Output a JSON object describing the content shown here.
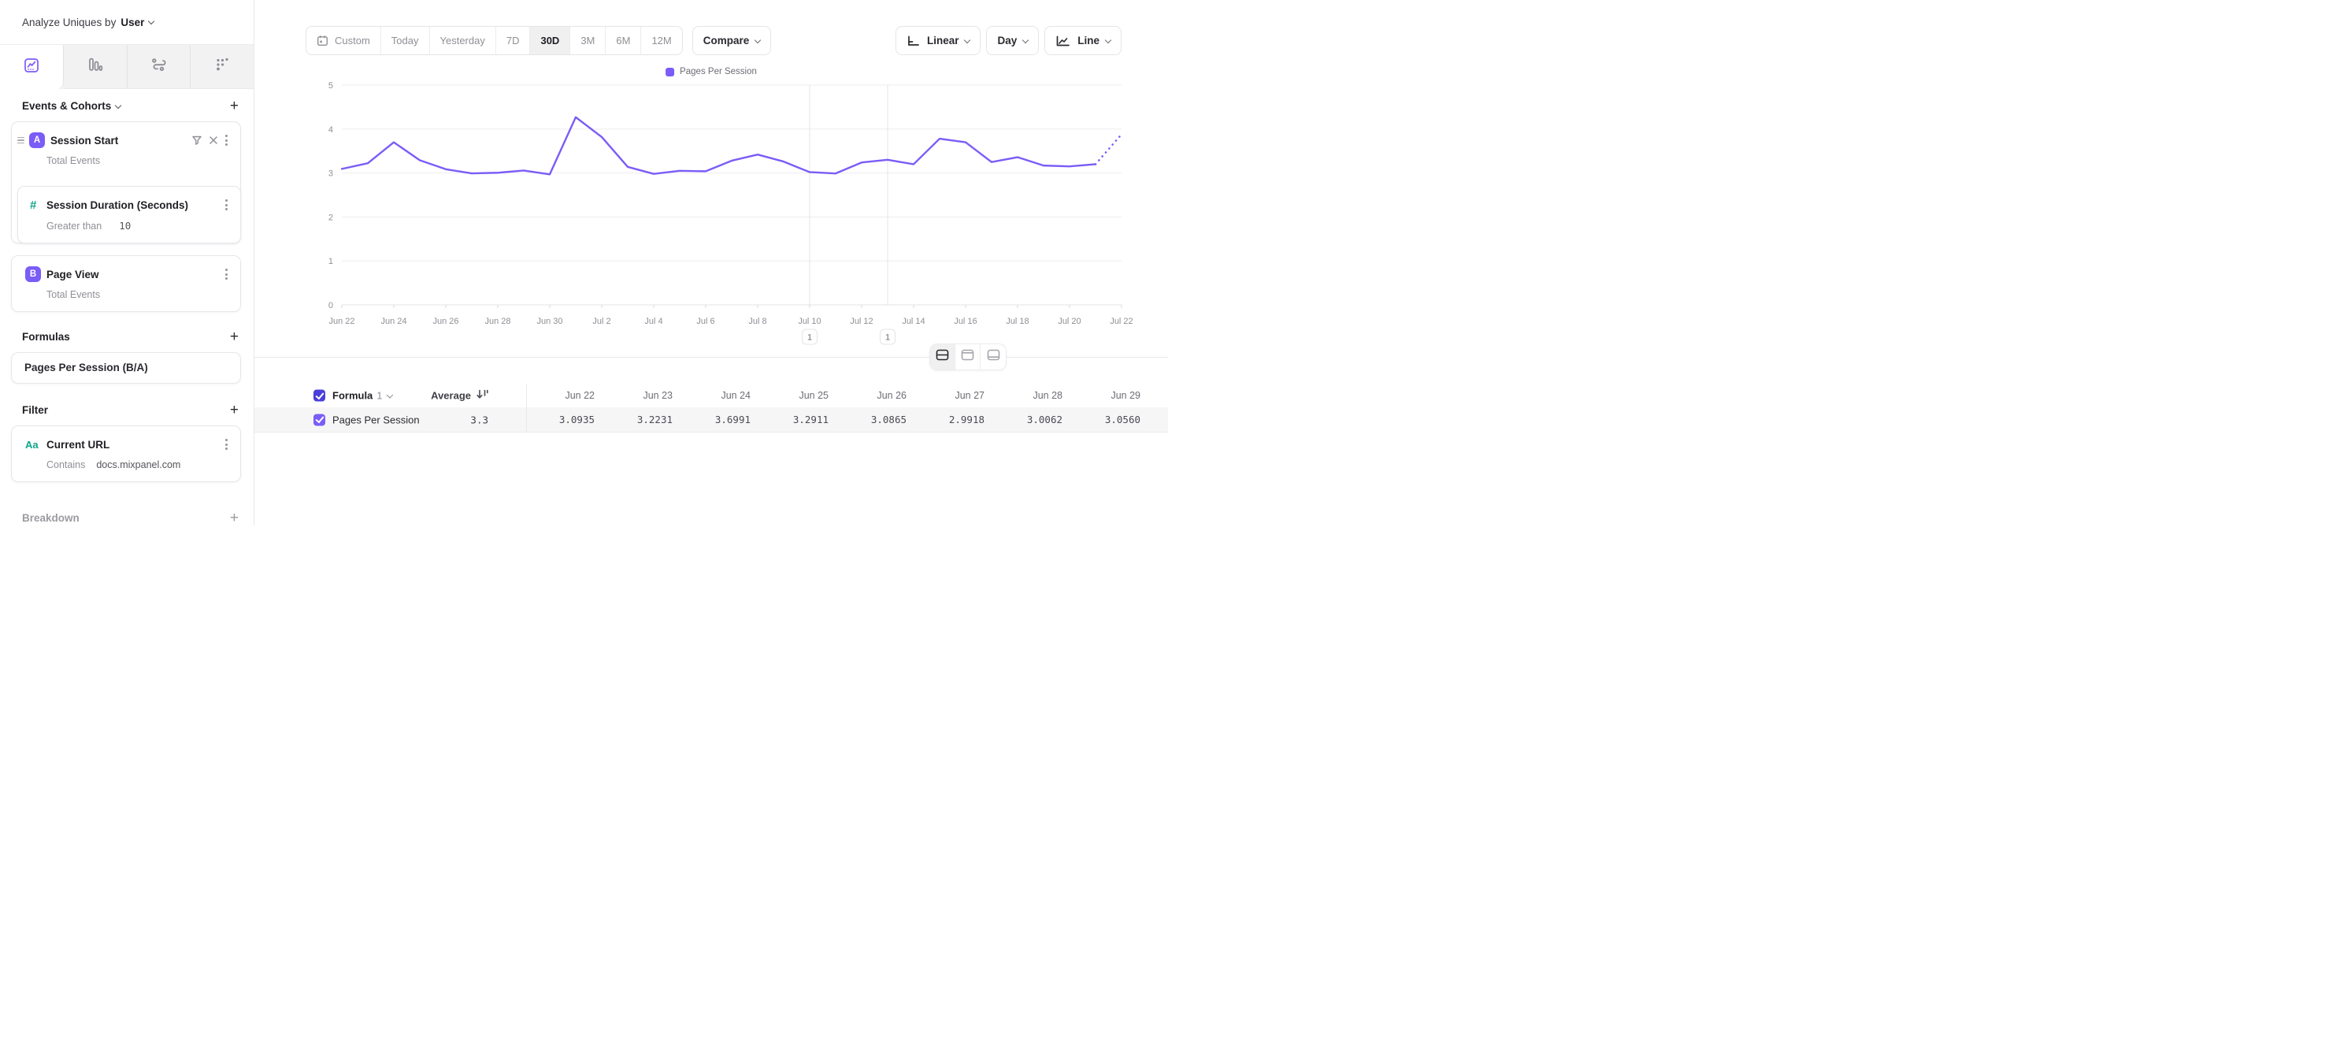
{
  "topbar": {
    "label": "Analyze Uniques by",
    "value": "User"
  },
  "sidebar": {
    "tabs": [
      {
        "icon": "insights-chart-icon",
        "active": true
      },
      {
        "icon": "funnels-bars-icon",
        "active": false
      },
      {
        "icon": "flows-icon",
        "active": false
      },
      {
        "icon": "retention-dots-icon",
        "active": false
      }
    ],
    "events": {
      "title": "Events & Cohorts",
      "items": [
        {
          "letter": "A",
          "title": "Session Start",
          "measure": "Total Events",
          "numeric_filter": {
            "glyph": "#",
            "title": "Session Duration (Seconds)",
            "operator": "Greater than",
            "value": "10"
          }
        },
        {
          "letter": "B",
          "title": "Page View",
          "measure": "Total Events"
        }
      ]
    },
    "formulas": {
      "title": "Formulas",
      "items": [
        {
          "name": "Pages Per Session (B/A)"
        }
      ]
    },
    "filter": {
      "title": "Filter",
      "items": [
        {
          "glyph": "Aa",
          "title": "Current URL",
          "operator": "Contains",
          "value": "docs.mixpanel.com"
        }
      ]
    },
    "breakdown": {
      "title": "Breakdown"
    }
  },
  "toolbar": {
    "date_ranges": [
      "Custom",
      "Today",
      "Yesterday",
      "7D",
      "30D",
      "3M",
      "6M",
      "12M"
    ],
    "selected_range": "30D",
    "compare_label": "Compare",
    "scale_label": "Linear",
    "interval_label": "Day",
    "chart_type_label": "Line"
  },
  "chart_data": {
    "type": "line",
    "legend": [
      "Pages Per Session"
    ],
    "legend_position": "top",
    "grid": "horizontal",
    "ylim": [
      0,
      5
    ],
    "y_ticks": [
      0,
      1,
      2,
      3,
      4,
      5
    ],
    "x_tick_every": 2,
    "x": [
      "Jun 22",
      "Jun 23",
      "Jun 24",
      "Jun 25",
      "Jun 26",
      "Jun 27",
      "Jun 28",
      "Jun 29",
      "Jun 30",
      "Jul 1",
      "Jul 2",
      "Jul 3",
      "Jul 4",
      "Jul 5",
      "Jul 6",
      "Jul 7",
      "Jul 8",
      "Jul 9",
      "Jul 10",
      "Jul 11",
      "Jul 12",
      "Jul 13",
      "Jul 14",
      "Jul 15",
      "Jul 16",
      "Jul 17",
      "Jul 18",
      "Jul 19",
      "Jul 20",
      "Jul 21",
      "Jul 22"
    ],
    "series": [
      {
        "name": "Pages Per Session",
        "color": "#7b5cf7",
        "values": [
          3.0935,
          3.2231,
          3.6991,
          3.2911,
          3.0865,
          2.9918,
          3.0062,
          3.056,
          2.97,
          4.27,
          3.82,
          3.14,
          2.98,
          3.05,
          3.04,
          3.28,
          3.42,
          3.26,
          3.02,
          2.99,
          3.24,
          3.3,
          3.2,
          3.78,
          3.7,
          3.25,
          3.36,
          3.17,
          3.15,
          3.2,
          3.88
        ],
        "dotted_last_segment": true
      }
    ],
    "annotations": [
      {
        "date": "Jul 10",
        "label": "1"
      },
      {
        "date": "Jul 13",
        "label": "1"
      }
    ]
  },
  "view_toggle": {
    "options": [
      "split-view",
      "chart-only-view",
      "table-only-view"
    ],
    "active": "split-view"
  },
  "table": {
    "group_label": "Formula",
    "group_index": "1",
    "average_label": "Average",
    "columns": [
      "Jun 22",
      "Jun 23",
      "Jun 24",
      "Jun 25",
      "Jun 26",
      "Jun 27",
      "Jun 28",
      "Jun 29"
    ],
    "rows": [
      {
        "name": "Pages Per Session",
        "average": "3.3",
        "checked": true,
        "values": [
          "3.0935",
          "3.2231",
          "3.6991",
          "3.2911",
          "3.0865",
          "2.9918",
          "3.0062",
          "3.0560"
        ]
      }
    ]
  }
}
